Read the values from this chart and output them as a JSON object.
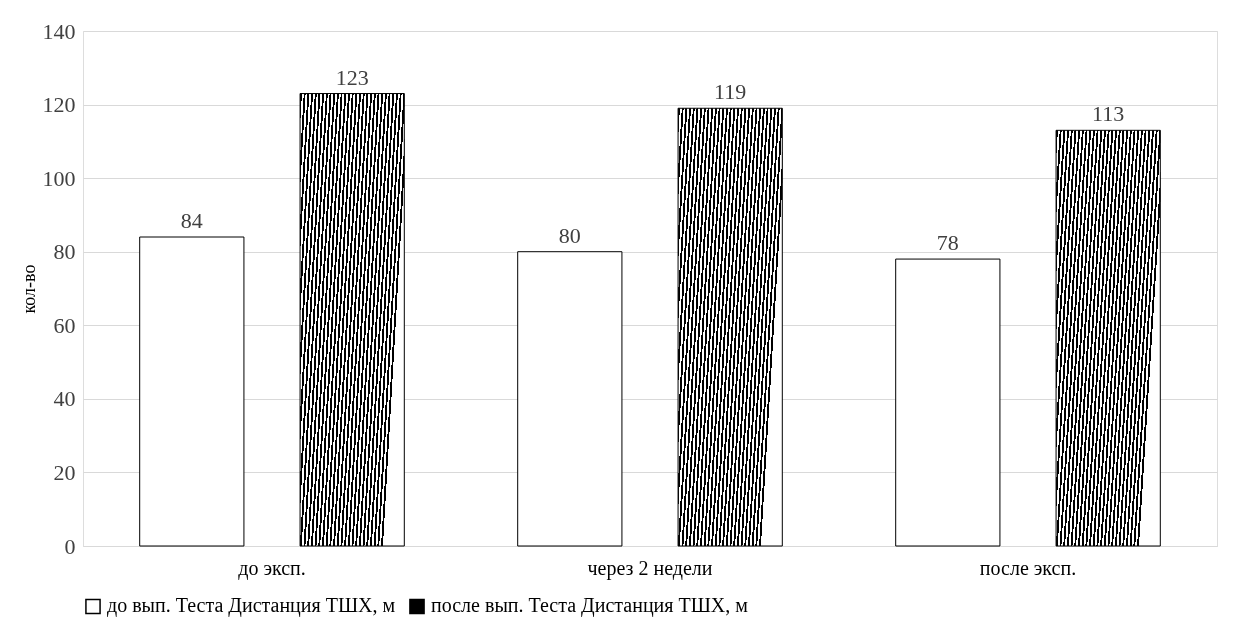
{
  "chart_data": {
    "type": "bar",
    "ylabel": "кол-во",
    "categories": [
      "до эксп.",
      "через 2 недели",
      "после эксп."
    ],
    "series": [
      {
        "name": "до вып. Теста Дистанция ТШХ, м",
        "color": "#ffffff",
        "values": [
          84,
          80,
          78
        ]
      },
      {
        "name": "после  вып. Теста Дистанция ТШХ, м",
        "color": "#000000",
        "values": [
          123,
          119,
          113
        ]
      }
    ],
    "ylim": [
      0,
      140
    ],
    "yticks": [
      0,
      20,
      40,
      60,
      80,
      100,
      120,
      140
    ],
    "grid": "y",
    "legend": "bottom",
    "data_labels": true
  }
}
